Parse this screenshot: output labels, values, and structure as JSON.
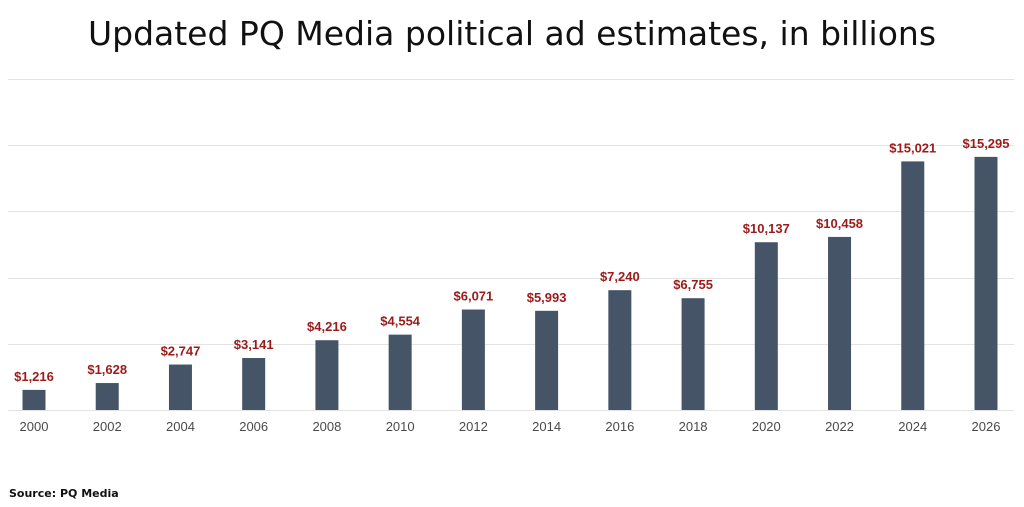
{
  "colors": {
    "bar": "#455467",
    "value_label": "#9b1b1b",
    "grid": "#e3e3e3",
    "tick_label": "#4a4a4a"
  },
  "chart_data": {
    "type": "bar",
    "title": "Updated PQ Media political ad estimates, in billions",
    "categories": [
      "2000",
      "2002",
      "2004",
      "2006",
      "2008",
      "2010",
      "2012",
      "2014",
      "2016",
      "2018",
      "2020",
      "2022",
      "2024",
      "2026"
    ],
    "values": [
      1216,
      1628,
      2747,
      3141,
      4216,
      4554,
      6071,
      5993,
      7240,
      6755,
      10137,
      10458,
      15021,
      15295
    ],
    "value_labels": [
      "$1,216",
      "$1,628",
      "$2,747",
      "$3,141",
      "$4,216",
      "$4,554",
      "$6,071",
      "$5,993",
      "$7,240",
      "$6,755",
      "$10,137",
      "$10,458",
      "$15,021",
      "$15,295"
    ],
    "xlabel": "",
    "ylabel": "",
    "ylim": [
      0,
      20000
    ],
    "grid": true,
    "legend": "none"
  },
  "source": "Source: PQ Media"
}
